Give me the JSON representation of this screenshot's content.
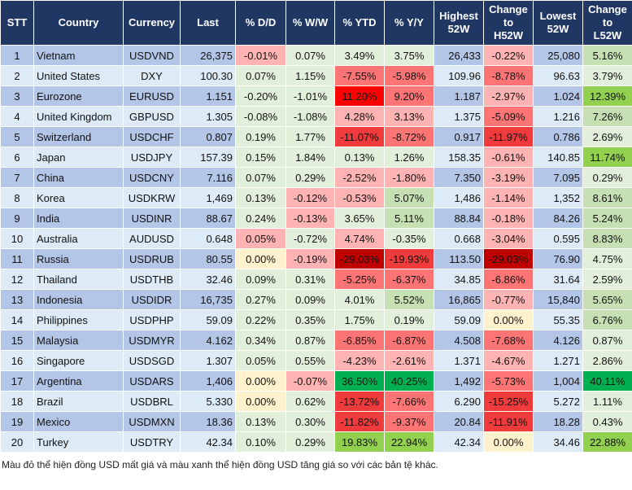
{
  "headers": [
    "STT",
    "Country",
    "Currency",
    "Last",
    "% D/D",
    "% W/W",
    "% YTD",
    "% Y/Y",
    "Highest\n52W",
    "Change\nto\nH52W",
    "Lowest\n52W",
    "Change\nto\nL52W"
  ],
  "palette": {
    "g": "#e2efda",
    "G": "#c6e0b4",
    "GG": "#92d050",
    "GGG": "#00b050",
    "p": "#ffb3b3",
    "r": "#ff7575",
    "R": "#ef3b3b",
    "RR": "#ff0000",
    "RRR": "#c00000",
    "y": "#fff2cc"
  },
  "rows": [
    {
      "stt": "1",
      "country": "Vietnam",
      "currency": "USDVND",
      "last": "26,375",
      "dd": "-0.01%",
      "ww": "0.07%",
      "ytd": "3.49%",
      "yy": "3.75%",
      "high": "26,433",
      "ch": "-0.22%",
      "low": "25,080",
      "cl": "5.16%",
      "colors": [
        "p",
        "g",
        "g",
        "g",
        "p",
        "G"
      ]
    },
    {
      "stt": "2",
      "country": "United States",
      "currency": "DXY",
      "last": "100.30",
      "dd": "0.07%",
      "ww": "1.15%",
      "ytd": "-7.55%",
      "yy": "-5.98%",
      "high": "109.96",
      "ch": "-8.78%",
      "low": "96.63",
      "cl": "3.79%",
      "colors": [
        "g",
        "g",
        "r",
        "r",
        "r",
        "g"
      ]
    },
    {
      "stt": "3",
      "country": "Eurozone",
      "currency": "EURUSD",
      "last": "1.151",
      "dd": "-0.20%",
      "ww": "-1.01%",
      "ytd": "11.20%",
      "yy": "9.20%",
      "high": "1.187",
      "ch": "-2.97%",
      "low": "1.024",
      "cl": "12.39%",
      "colors": [
        "g",
        "g",
        "RR",
        "r",
        "p",
        "GG"
      ]
    },
    {
      "stt": "4",
      "country": "United Kingdom",
      "currency": "GBPUSD",
      "last": "1.305",
      "dd": "-0.08%",
      "ww": "-1.08%",
      "ytd": "4.28%",
      "yy": "3.13%",
      "high": "1.375",
      "ch": "-5.09%",
      "low": "1.216",
      "cl": "7.26%",
      "colors": [
        "g",
        "g",
        "p",
        "p",
        "r",
        "G"
      ]
    },
    {
      "stt": "5",
      "country": "Switzerland",
      "currency": "USDCHF",
      "last": "0.807",
      "dd": "0.19%",
      "ww": "1.77%",
      "ytd": "-11.07%",
      "yy": "-8.72%",
      "high": "0.917",
      "ch": "-11.97%",
      "low": "0.786",
      "cl": "2.69%",
      "colors": [
        "g",
        "g",
        "R",
        "r",
        "R",
        "g"
      ]
    },
    {
      "stt": "6",
      "country": "Japan",
      "currency": "USDJPY",
      "last": "157.39",
      "dd": "0.15%",
      "ww": "1.84%",
      "ytd": "0.13%",
      "yy": "1.26%",
      "high": "158.35",
      "ch": "-0.61%",
      "low": "140.85",
      "cl": "11.74%",
      "colors": [
        "g",
        "g",
        "g",
        "g",
        "p",
        "GG"
      ]
    },
    {
      "stt": "7",
      "country": "China",
      "currency": "USDCNY",
      "last": "7.116",
      "dd": "0.07%",
      "ww": "0.29%",
      "ytd": "-2.52%",
      "yy": "-1.80%",
      "high": "7.350",
      "ch": "-3.19%",
      "low": "7.095",
      "cl": "0.29%",
      "colors": [
        "g",
        "g",
        "p",
        "p",
        "p",
        "g"
      ]
    },
    {
      "stt": "8",
      "country": "Korea",
      "currency": "USDKRW",
      "last": "1,469",
      "dd": "0.13%",
      "ww": "-0.12%",
      "ytd": "-0.53%",
      "yy": "5.07%",
      "high": "1,486",
      "ch": "-1.14%",
      "low": "1,352",
      "cl": "8.61%",
      "colors": [
        "g",
        "p",
        "p",
        "G",
        "p",
        "G"
      ]
    },
    {
      "stt": "9",
      "country": "India",
      "currency": "USDINR",
      "last": "88.67",
      "dd": "0.24%",
      "ww": "-0.13%",
      "ytd": "3.65%",
      "yy": "5.11%",
      "high": "88.84",
      "ch": "-0.18%",
      "low": "84.26",
      "cl": "5.24%",
      "colors": [
        "g",
        "p",
        "g",
        "G",
        "p",
        "G"
      ]
    },
    {
      "stt": "10",
      "country": "Australia",
      "currency": "AUDUSD",
      "last": "0.648",
      "dd": "0.05%",
      "ww": "-0.72%",
      "ytd": "4.74%",
      "yy": "-0.35%",
      "high": "0.668",
      "ch": "-3.04%",
      "low": "0.595",
      "cl": "8.83%",
      "colors": [
        "p",
        "g",
        "p",
        "g",
        "p",
        "G"
      ]
    },
    {
      "stt": "11",
      "country": "Russia",
      "currency": "USDRUB",
      "last": "80.55",
      "dd": "0.00%",
      "ww": "-0.19%",
      "ytd": "-29.03%",
      "yy": "-19.93%",
      "high": "113.50",
      "ch": "-29.03%",
      "low": "76.90",
      "cl": "4.75%",
      "colors": [
        "y",
        "p",
        "RRR",
        "R",
        "RRR",
        "g"
      ]
    },
    {
      "stt": "12",
      "country": "Thailand",
      "currency": "USDTHB",
      "last": "32.46",
      "dd": "0.09%",
      "ww": "0.31%",
      "ytd": "-5.25%",
      "yy": "-6.37%",
      "high": "34.85",
      "ch": "-6.86%",
      "low": "31.64",
      "cl": "2.59%",
      "colors": [
        "g",
        "g",
        "r",
        "r",
        "r",
        "g"
      ]
    },
    {
      "stt": "13",
      "country": "Indonesia",
      "currency": "USDIDR",
      "last": "16,735",
      "dd": "0.27%",
      "ww": "0.09%",
      "ytd": "4.01%",
      "yy": "5.52%",
      "high": "16,865",
      "ch": "-0.77%",
      "low": "15,840",
      "cl": "5.65%",
      "colors": [
        "g",
        "g",
        "g",
        "G",
        "p",
        "G"
      ]
    },
    {
      "stt": "14",
      "country": "Philippines",
      "currency": "USDPHP",
      "last": "59.09",
      "dd": "0.22%",
      "ww": "0.35%",
      "ytd": "1.75%",
      "yy": "0.19%",
      "high": "59.09",
      "ch": "0.00%",
      "low": "55.35",
      "cl": "6.76%",
      "colors": [
        "g",
        "g",
        "g",
        "g",
        "y",
        "G"
      ]
    },
    {
      "stt": "15",
      "country": "Malaysia",
      "currency": "USDMYR",
      "last": "4.162",
      "dd": "0.34%",
      "ww": "0.87%",
      "ytd": "-6.85%",
      "yy": "-6.87%",
      "high": "4.508",
      "ch": "-7.68%",
      "low": "4.126",
      "cl": "0.87%",
      "colors": [
        "g",
        "g",
        "r",
        "r",
        "r",
        "g"
      ]
    },
    {
      "stt": "16",
      "country": "Singapore",
      "currency": "USDSGD",
      "last": "1.307",
      "dd": "0.05%",
      "ww": "0.55%",
      "ytd": "-4.23%",
      "yy": "-2.61%",
      "high": "1.371",
      "ch": "-4.67%",
      "low": "1.271",
      "cl": "2.86%",
      "colors": [
        "g",
        "g",
        "p",
        "p",
        "p",
        "g"
      ]
    },
    {
      "stt": "17",
      "country": "Argentina",
      "currency": "USDARS",
      "last": "1,406",
      "dd": "0.00%",
      "ww": "-0.07%",
      "ytd": "36.50%",
      "yy": "40.25%",
      "high": "1,492",
      "ch": "-5.73%",
      "low": "1,004",
      "cl": "40.11%",
      "colors": [
        "y",
        "p",
        "GGG",
        "GGG",
        "r",
        "GGG"
      ]
    },
    {
      "stt": "18",
      "country": "Brazil",
      "currency": "USDBRL",
      "last": "5.330",
      "dd": "0.00%",
      "ww": "0.62%",
      "ytd": "-13.72%",
      "yy": "-7.66%",
      "high": "6.290",
      "ch": "-15.25%",
      "low": "5.272",
      "cl": "1.11%",
      "colors": [
        "y",
        "g",
        "R",
        "r",
        "R",
        "g"
      ]
    },
    {
      "stt": "19",
      "country": "Mexico",
      "currency": "USDMXN",
      "last": "18.36",
      "dd": "0.13%",
      "ww": "0.30%",
      "ytd": "-11.82%",
      "yy": "-9.37%",
      "high": "20.84",
      "ch": "-11.91%",
      "low": "18.28",
      "cl": "0.43%",
      "colors": [
        "g",
        "g",
        "R",
        "r",
        "R",
        "g"
      ]
    },
    {
      "stt": "20",
      "country": "Turkey",
      "currency": "USDTRY",
      "last": "42.34",
      "dd": "0.10%",
      "ww": "0.29%",
      "ytd": "19.83%",
      "yy": "22.94%",
      "high": "42.34",
      "ch": "0.00%",
      "low": "34.46",
      "cl": "22.88%",
      "colors": [
        "g",
        "g",
        "GG",
        "GG",
        "y",
        "GG"
      ]
    }
  ],
  "caption": "Màu đỏ thể hiện đồng USD mất giá và màu xanh thể hiện đồng USD tăng giá so với các bản tệ khác."
}
